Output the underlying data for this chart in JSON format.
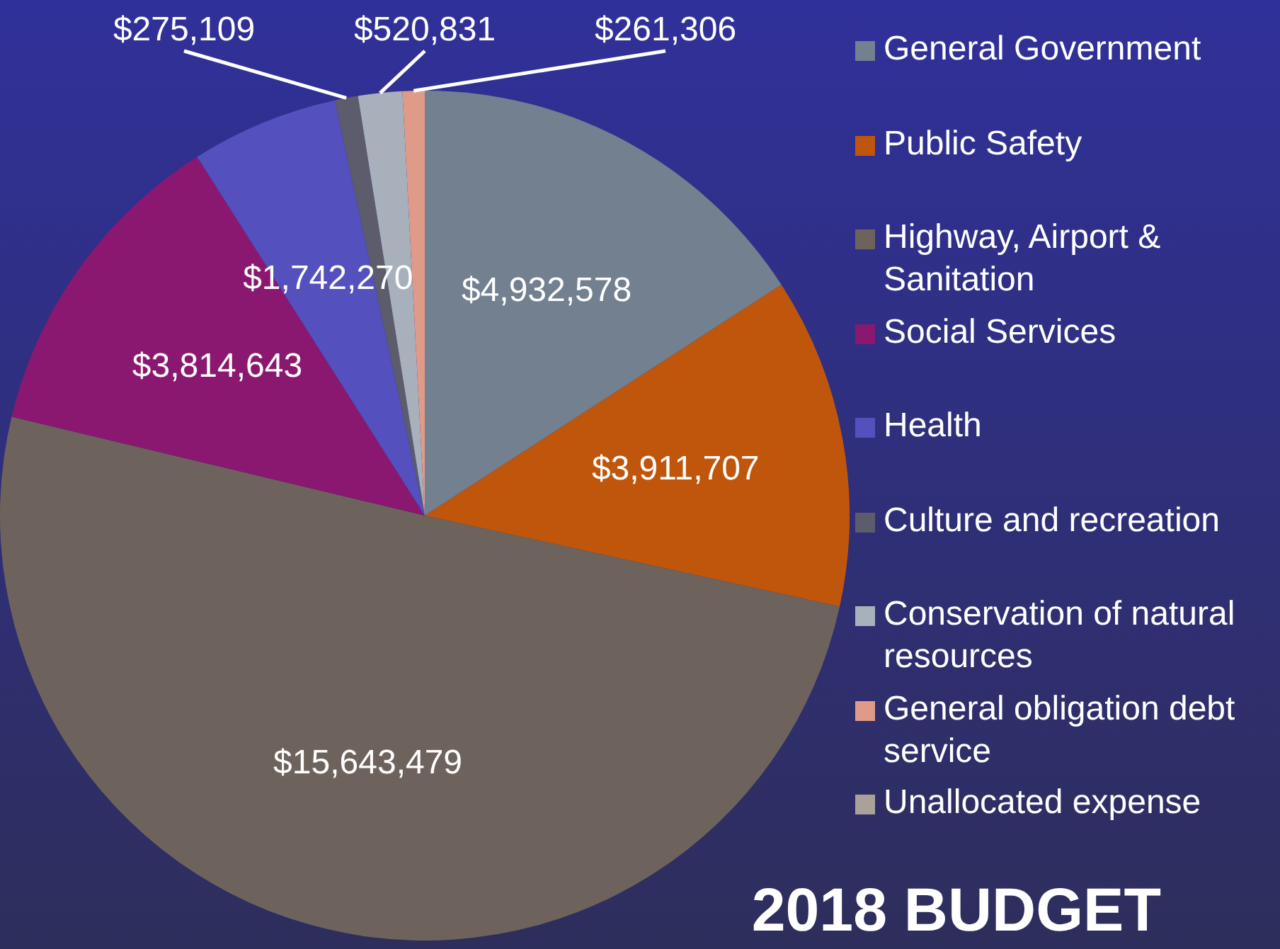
{
  "chart_data": {
    "type": "pie",
    "title": "2018 BUDGET",
    "categories": [
      "General Government",
      "Public Safety",
      "Highway, Airport & Sanitation",
      "Social Services",
      "Health",
      "Culture and recreation",
      "Conservation of natural resources",
      "General obligation debt service",
      "Unallocated expense"
    ],
    "values": [
      4932578,
      3911707,
      15643479,
      3814643,
      1742270,
      275109,
      520831,
      261306,
      0
    ],
    "value_labels": [
      "$4,932,578",
      "$3,911,707",
      "$15,643,479",
      "$3,814,643",
      "$1,742,270",
      "$275,109",
      "$520,831",
      "$261,306",
      null
    ],
    "colors": [
      "#738090",
      "#c0560c",
      "#6e635c",
      "#8a1870",
      "#5450be",
      "#5c5c6c",
      "#a8b0bc",
      "#e09a88",
      "#aaa29a"
    ],
    "legend": "right"
  }
}
